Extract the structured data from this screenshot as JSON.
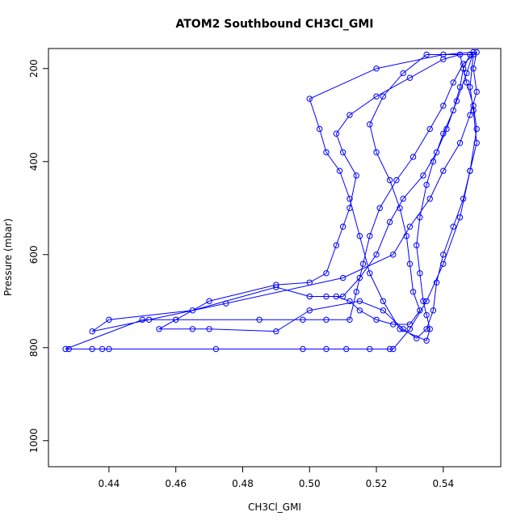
{
  "chart_data": {
    "type": "line",
    "title": "ATOM2 Southbound CH3Cl_GMI",
    "x_label": "CH3Cl_GMI",
    "y_label": "Pressure (mbar)",
    "x": [
      0.548,
      0.546,
      0.545,
      0.543,
      0.54,
      0.537,
      0.535,
      0.533,
      0.532,
      0.533,
      0.534,
      0.535,
      0.536,
      0.535,
      0.527,
      0.522,
      0.518,
      0.515,
      0.512,
      0.509,
      0.505,
      0.503,
      0.5,
      0.52,
      0.54,
      0.549,
      0.547,
      0.544,
      0.541,
      0.538,
      0.534,
      0.528,
      0.524,
      0.52,
      0.515,
      0.51,
      0.505,
      0.5,
      0.49,
      0.465,
      0.44,
      0.435,
      0.452,
      0.475,
      0.51,
      0.525,
      0.53,
      0.536,
      0.54,
      0.545,
      0.548,
      0.55,
      0.549,
      0.55,
      0.546,
      0.543,
      0.54,
      0.536,
      0.531,
      0.526,
      0.521,
      0.518,
      0.516,
      0.514,
      0.512,
      0.505,
      0.498,
      0.485,
      0.46,
      0.45,
      0.427,
      0.428,
      0.435,
      0.438,
      0.44,
      0.472,
      0.498,
      0.505,
      0.511,
      0.518,
      0.524,
      0.525,
      0.53,
      0.535,
      0.54,
      0.545,
      0.548,
      0.55,
      0.549,
      0.547,
      0.545,
      0.54,
      0.53,
      0.52,
      0.512,
      0.508,
      0.51,
      0.514,
      0.512,
      0.51,
      0.508,
      0.505,
      0.5,
      0.49,
      0.47,
      0.455,
      0.465,
      0.47,
      0.49,
      0.5,
      0.515,
      0.522,
      0.528,
      0.532,
      0.535,
      0.537,
      0.538,
      0.54,
      0.543,
      0.546,
      0.548,
      0.55,
      0.549,
      0.548,
      0.549,
      0.535,
      0.528,
      0.522,
      0.518,
      0.52,
      0.524,
      0.527,
      0.529,
      0.53,
      0.531,
      0.533,
      0.53,
      0.525,
      0.52,
      0.515,
      0.512,
      0.508
    ],
    "series": [
      {
        "color": "#0000ff",
        "values": [
          170,
          200,
          240,
          290,
          340,
          400,
          450,
          520,
          580,
          640,
          700,
          730,
          760,
          785,
          760,
          700,
          640,
          560,
          480,
          420,
          380,
          330,
          265,
          200,
          170,
          165,
          210,
          270,
          330,
          380,
          430,
          480,
          530,
          600,
          650,
          690,
          690,
          690,
          670,
          720,
          740,
          765,
          740,
          705,
          650,
          600,
          540,
          480,
          420,
          360,
          300,
          250,
          200,
          165,
          190,
          230,
          280,
          330,
          390,
          440,
          500,
          560,
          620,
          680,
          740,
          740,
          740,
          740,
          740,
          740,
          803,
          803,
          803,
          803,
          803,
          803,
          803,
          803,
          803,
          803,
          803,
          803,
          760,
          700,
          620,
          520,
          420,
          330,
          280,
          230,
          170,
          180,
          220,
          260,
          300,
          340,
          380,
          430,
          500,
          540,
          580,
          640,
          660,
          665,
          700,
          760,
          760,
          760,
          765,
          720,
          700,
          720,
          760,
          780,
          760,
          720,
          660,
          600,
          540,
          480,
          420,
          360,
          290,
          240,
          170,
          170,
          210,
          260,
          320,
          380,
          440,
          500,
          560,
          620,
          680,
          720,
          750,
          750,
          740,
          720,
          700,
          690
        ]
      }
    ],
    "xlim": [
      0.4219,
      0.5572
    ],
    "ylim": [
      1056,
      157
    ],
    "xticks": [
      0.44,
      0.46,
      0.48,
      {
        "value": 0.5,
        "label": "0.50"
      },
      0.52,
      0.54
    ],
    "yticks": [
      200,
      400,
      600,
      800,
      1000
    ]
  }
}
